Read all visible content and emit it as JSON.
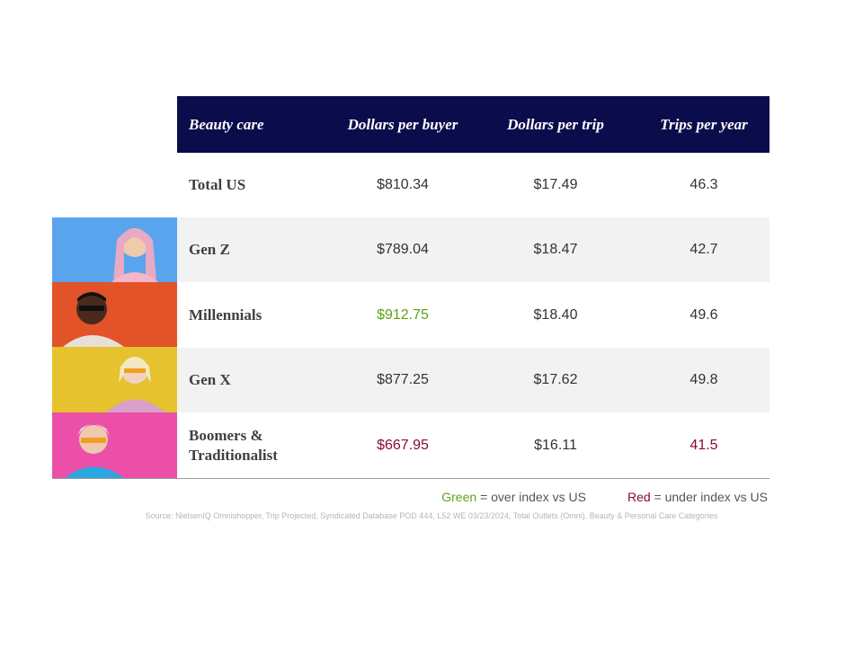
{
  "header": [
    "Beauty care",
    "Dollars per buyer",
    "Dollars per trip",
    "Trips per year"
  ],
  "rows": [
    {
      "label": "Total US",
      "values": [
        "$810.34",
        "$17.49",
        "46.3"
      ],
      "colors": [
        "#333333",
        "#333333",
        "#333333"
      ]
    },
    {
      "label": "Gen Z",
      "values": [
        "$789.04",
        "$18.47",
        "42.7"
      ],
      "colors": [
        "#333333",
        "#333333",
        "#333333"
      ]
    },
    {
      "label": "Millennials",
      "values": [
        "$912.75",
        "$18.40",
        "49.6"
      ],
      "colors": [
        "#5ea319",
        "#333333",
        "#333333"
      ]
    },
    {
      "label": "Gen X",
      "values": [
        "$877.25",
        "$17.62",
        "49.8"
      ],
      "colors": [
        "#333333",
        "#333333",
        "#333333"
      ]
    },
    {
      "label": "Boomers & Traditionalist",
      "values": [
        "$667.95",
        "$16.11",
        "41.5"
      ],
      "colors": [
        "#8a0a3a",
        "#333333",
        "#8a0a3a"
      ]
    }
  ],
  "legend": [
    {
      "key": "Green",
      "text": "= over index vs US",
      "color": "#5ea319"
    },
    {
      "key": "Red",
      "text": "= under index vs US",
      "color": "#8a0a3a"
    }
  ],
  "source": "Source: NielsenIQ Omnishopper, Trip Projected, Syndicated Database POD 444, L52 WE 03/23/2024, Total Outlets (Omni), Beauty & Personal Care Categories"
}
